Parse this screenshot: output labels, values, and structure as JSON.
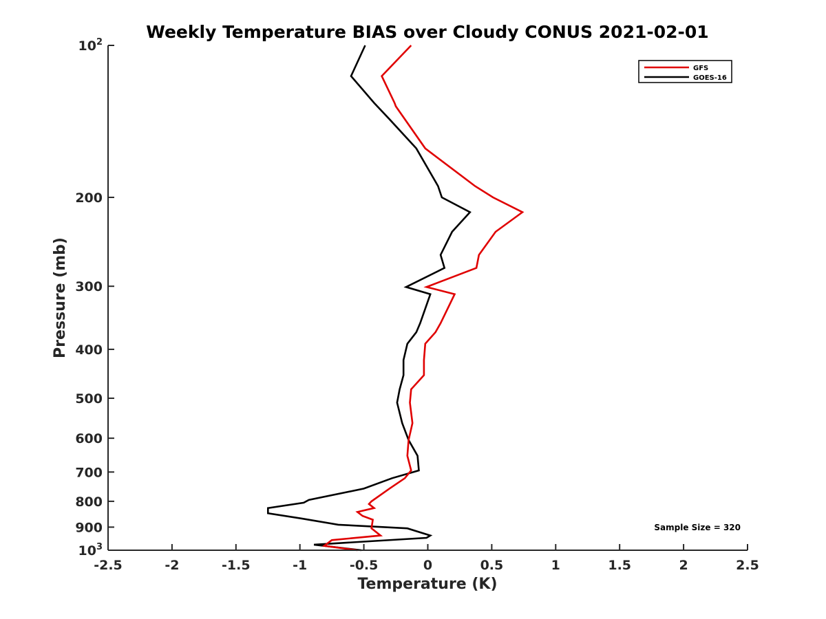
{
  "chart_data": {
    "type": "line",
    "title": "Weekly Temperature BIAS over Cloudy CONUS 2021-02-01",
    "xlabel": "Temperature (K)",
    "ylabel": "Pressure (mb)",
    "xlim": [
      -2.5,
      2.5
    ],
    "ylim": [
      1000,
      100
    ],
    "y_scale": "log",
    "y_reversed": true,
    "grid": false,
    "legend_position": "top-right",
    "x_ticks": [
      "-2.5",
      "-2",
      "-1.5",
      "-1",
      "-0.5",
      "0",
      "0.5",
      "1",
      "1.5",
      "2",
      "2.5"
    ],
    "y_ticks": [
      {
        "value": 100,
        "base": "10",
        "exp": "2"
      },
      {
        "value": 200,
        "label": "200"
      },
      {
        "value": 300,
        "label": "300"
      },
      {
        "value": 400,
        "label": "400"
      },
      {
        "value": 500,
        "label": "500"
      },
      {
        "value": 600,
        "label": "600"
      },
      {
        "value": 700,
        "label": "700"
      },
      {
        "value": 800,
        "label": "800"
      },
      {
        "value": 900,
        "label": "900"
      },
      {
        "value": 1000,
        "base": "10",
        "exp": "3"
      }
    ],
    "annotation": "Sample Size = 320",
    "series": [
      {
        "name": "GFS",
        "color": "#e00000",
        "points": [
          [
            -0.13,
            100
          ],
          [
            -0.36,
            115
          ],
          [
            -0.26,
            130
          ],
          [
            -0.25,
            132
          ],
          [
            -0.02,
            160
          ],
          [
            0.37,
            190
          ],
          [
            0.51,
            200
          ],
          [
            0.74,
            214
          ],
          [
            0.53,
            234
          ],
          [
            0.4,
            260
          ],
          [
            0.38,
            276
          ],
          [
            -0.01,
            301
          ],
          [
            0.21,
            311
          ],
          [
            0.1,
            355
          ],
          [
            0.06,
            370
          ],
          [
            -0.02,
            390
          ],
          [
            -0.03,
            420
          ],
          [
            -0.03,
            450
          ],
          [
            -0.13,
            480
          ],
          [
            -0.14,
            510
          ],
          [
            -0.12,
            560
          ],
          [
            -0.15,
            605
          ],
          [
            -0.16,
            650
          ],
          [
            -0.13,
            695
          ],
          [
            -0.18,
            720
          ],
          [
            -0.3,
            755
          ],
          [
            -0.44,
            800
          ],
          [
            -0.46,
            810
          ],
          [
            -0.42,
            825
          ],
          [
            -0.55,
            840
          ],
          [
            -0.51,
            855
          ],
          [
            -0.43,
            870
          ],
          [
            -0.44,
            905
          ],
          [
            -0.37,
            935
          ],
          [
            -0.75,
            955
          ],
          [
            -0.81,
            980
          ],
          [
            -0.55,
            1000
          ]
        ]
      },
      {
        "name": "GOES-16",
        "color": "#000000",
        "points": [
          [
            -0.49,
            100
          ],
          [
            -0.6,
            115
          ],
          [
            -0.42,
            130
          ],
          [
            -0.3,
            140
          ],
          [
            -0.09,
            160
          ],
          [
            0.08,
            190
          ],
          [
            0.11,
            200
          ],
          [
            0.33,
            214
          ],
          [
            0.19,
            234
          ],
          [
            0.1,
            260
          ],
          [
            0.13,
            276
          ],
          [
            -0.17,
            301
          ],
          [
            0.02,
            311
          ],
          [
            -0.06,
            355
          ],
          [
            -0.09,
            370
          ],
          [
            -0.16,
            390
          ],
          [
            -0.19,
            420
          ],
          [
            -0.19,
            450
          ],
          [
            -0.22,
            480
          ],
          [
            -0.24,
            510
          ],
          [
            -0.2,
            560
          ],
          [
            -0.15,
            605
          ],
          [
            -0.08,
            650
          ],
          [
            -0.07,
            695
          ],
          [
            -0.28,
            720
          ],
          [
            -0.5,
            755
          ],
          [
            -0.93,
            795
          ],
          [
            -0.97,
            805
          ],
          [
            -1.25,
            825
          ],
          [
            -1.25,
            845
          ],
          [
            -0.99,
            865
          ],
          [
            -0.7,
            890
          ],
          [
            -0.16,
            905
          ],
          [
            0.02,
            935
          ],
          [
            -0.01,
            945
          ],
          [
            -0.89,
            975
          ],
          [
            -0.52,
            1000
          ]
        ]
      }
    ]
  }
}
